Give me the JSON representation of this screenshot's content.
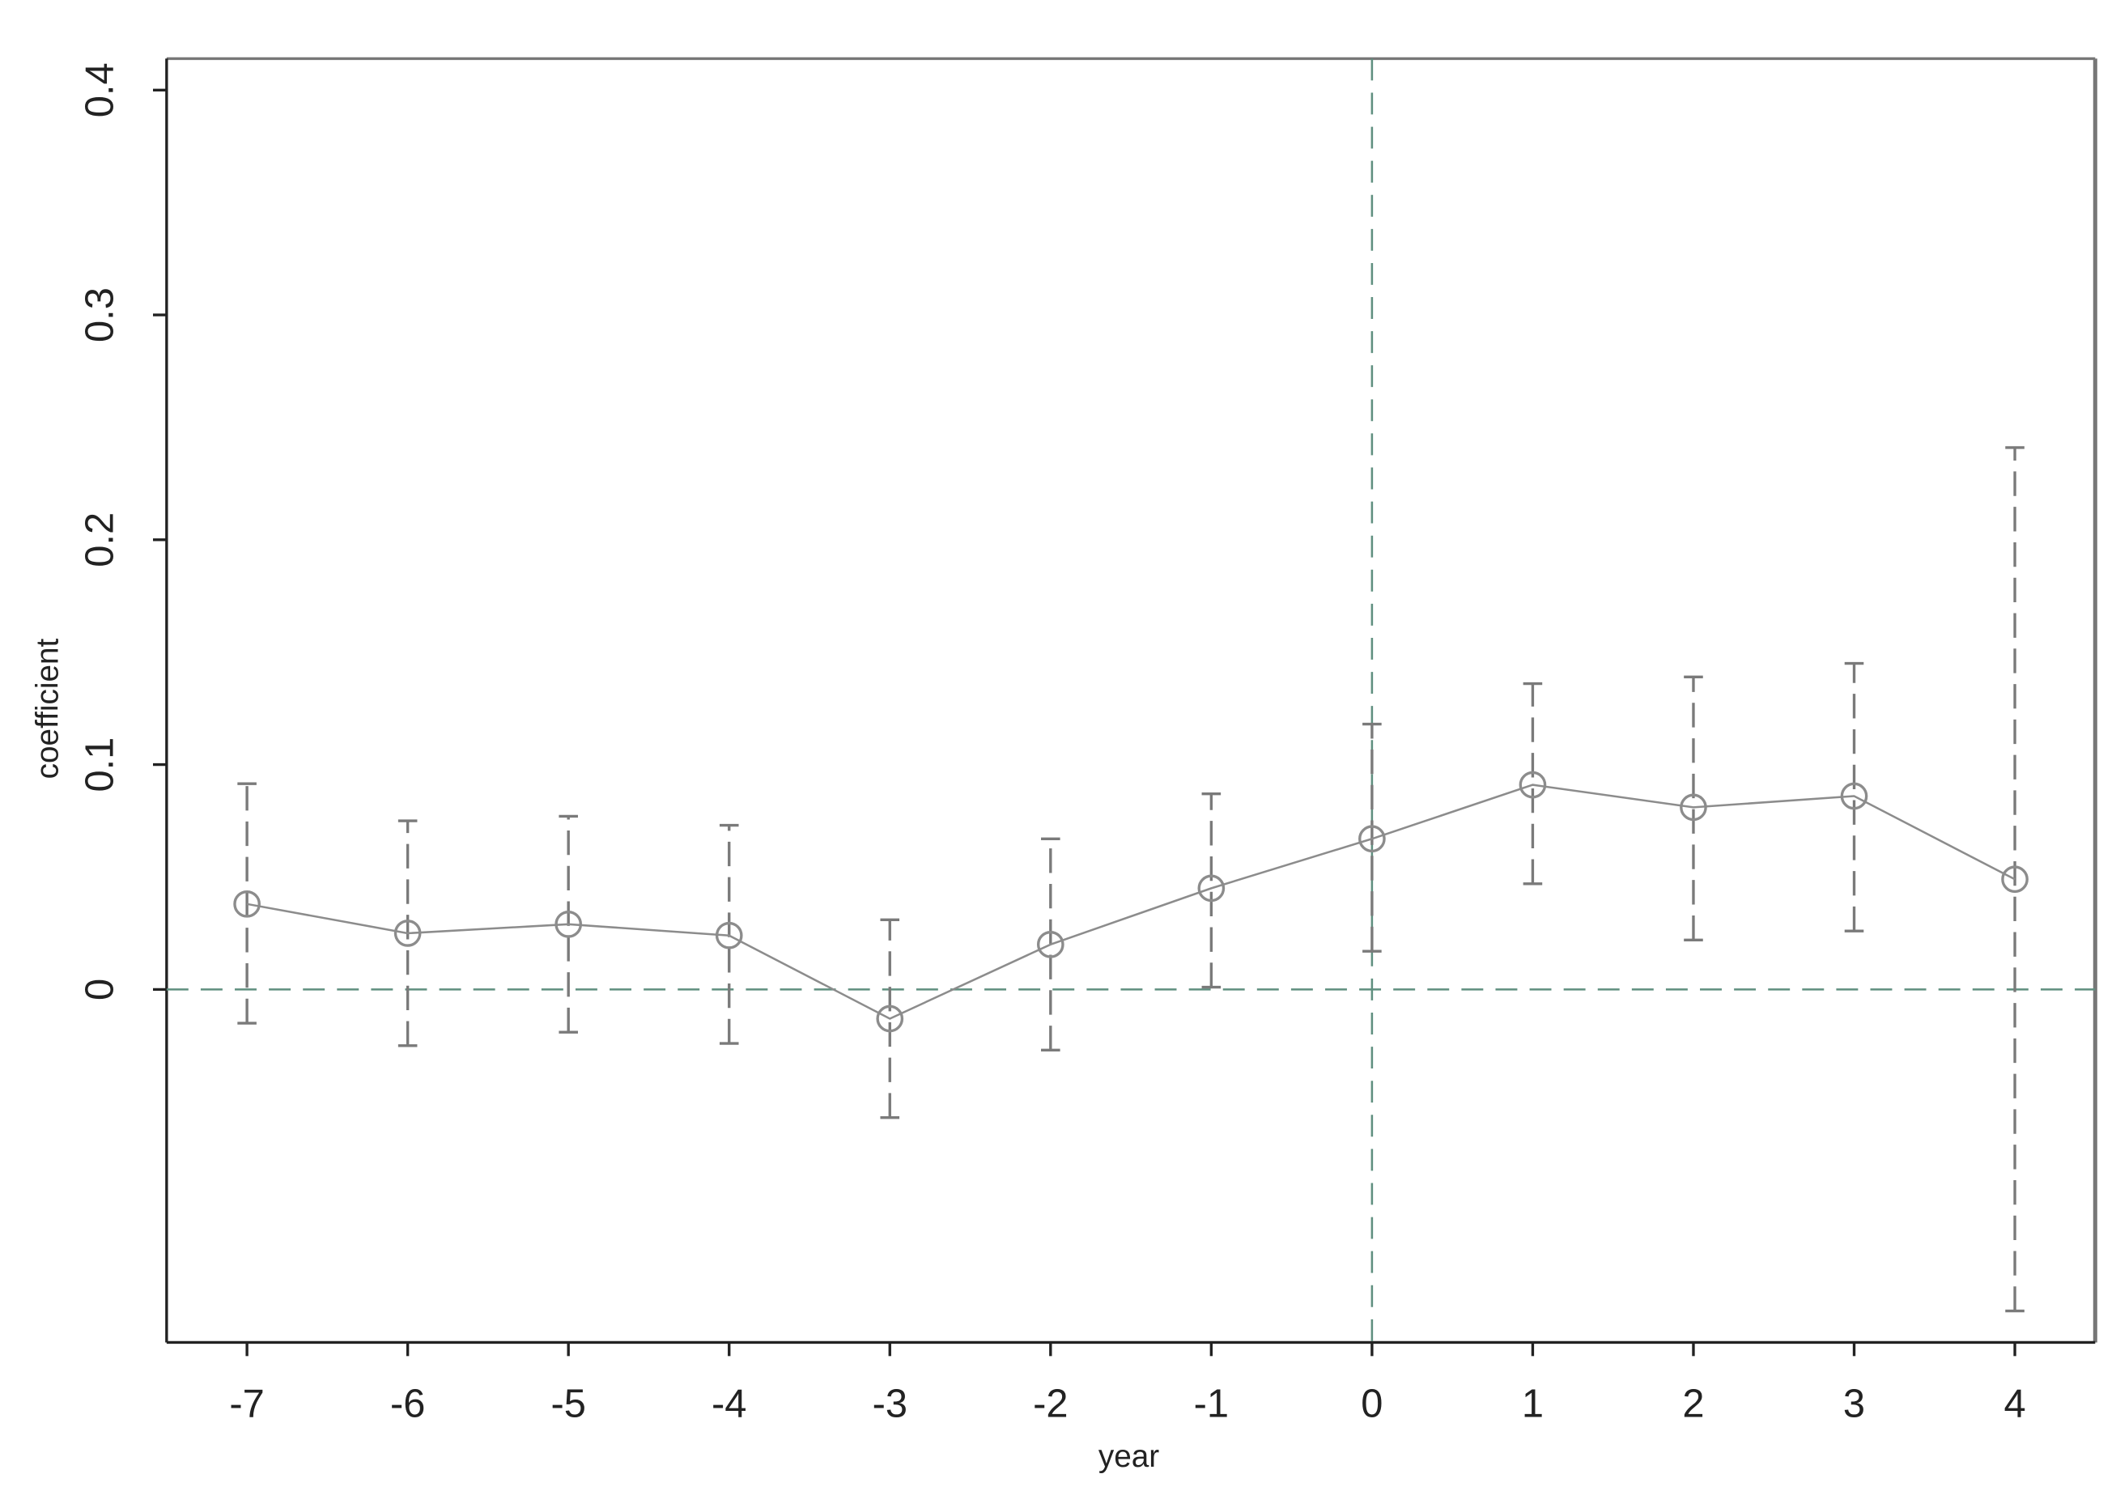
{
  "chart_data": {
    "type": "line",
    "x_label": "year",
    "y_label": "coefficient",
    "x": [
      -7,
      -6,
      -5,
      -4,
      -3,
      -2,
      -1,
      0,
      1,
      2,
      3,
      4
    ],
    "values": [
      0.038,
      0.025,
      0.029,
      0.024,
      -0.013,
      0.02,
      0.045,
      0.067,
      0.091,
      0.081,
      0.086,
      0.049
    ],
    "ci_lower": [
      -0.015,
      -0.025,
      -0.019,
      -0.024,
      -0.057,
      -0.027,
      0.001,
      0.017,
      0.047,
      0.022,
      0.026,
      -0.143
    ],
    "ci_upper": [
      0.0915,
      0.075,
      0.077,
      0.073,
      0.031,
      0.067,
      0.087,
      0.118,
      0.136,
      0.139,
      0.145,
      0.241
    ],
    "color": "#8c8c8c",
    "error_color": "#7a7a7a",
    "reference_color": "#5f8f7f",
    "hline": 0,
    "vline": 0,
    "xlim": [
      -7.5,
      4.5
    ],
    "ylim": [
      -0.157,
      0.414
    ],
    "xticks": [
      -7,
      -6,
      -5,
      -4,
      -3,
      -2,
      -1,
      0,
      1,
      2,
      3,
      4
    ],
    "yticks": [
      0,
      0.1,
      0.2,
      0.3,
      0.4
    ],
    "grid": false
  }
}
